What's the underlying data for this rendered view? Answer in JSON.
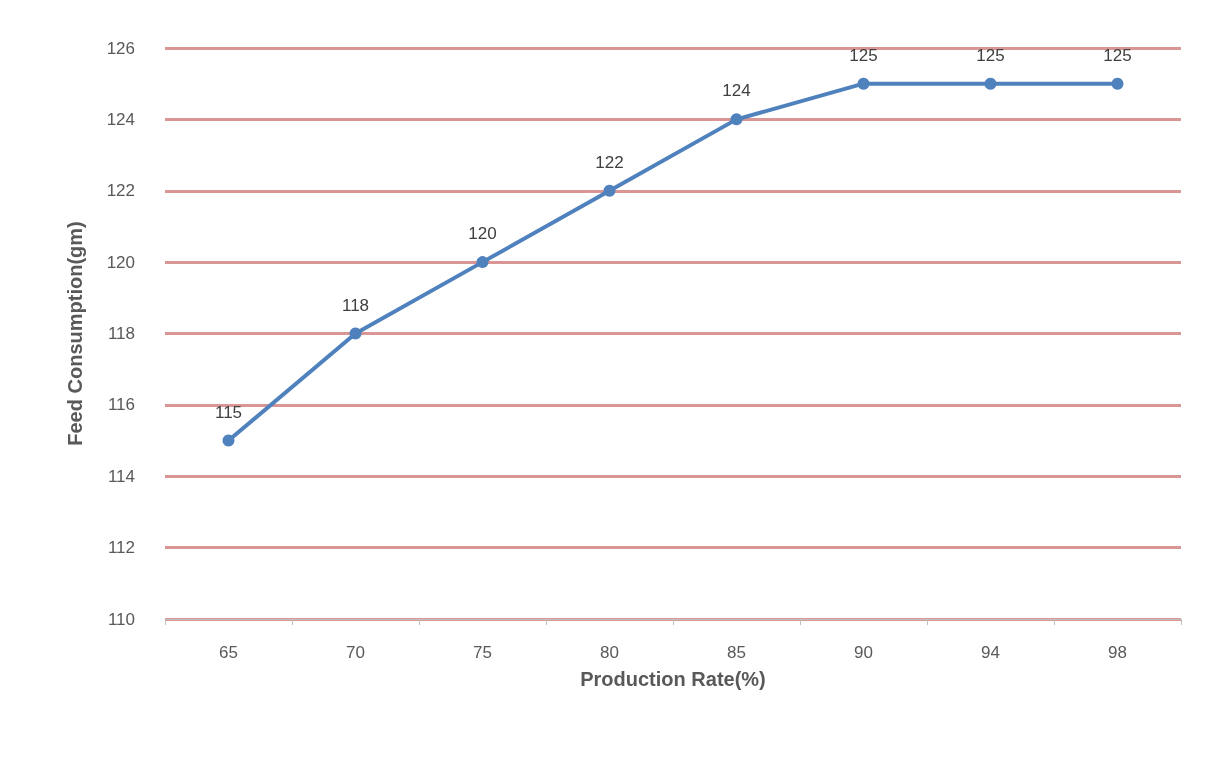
{
  "chart_data": {
    "type": "line",
    "xlabel": "Production Rate(%)",
    "ylabel": "Feed Consumption(gm)",
    "categories": [
      "65",
      "70",
      "75",
      "80",
      "85",
      "90",
      "94",
      "98"
    ],
    "series": [
      {
        "color": "#4f81bd",
        "values": [
          115,
          118,
          120,
          122,
          124,
          125,
          125,
          125
        ]
      }
    ],
    "ylim": [
      110,
      126
    ],
    "yticks": [
      110,
      112,
      114,
      116,
      118,
      120,
      122,
      124,
      126
    ],
    "grid": "y",
    "data_labels": true,
    "marker": "circle",
    "line_style": "solid"
  }
}
